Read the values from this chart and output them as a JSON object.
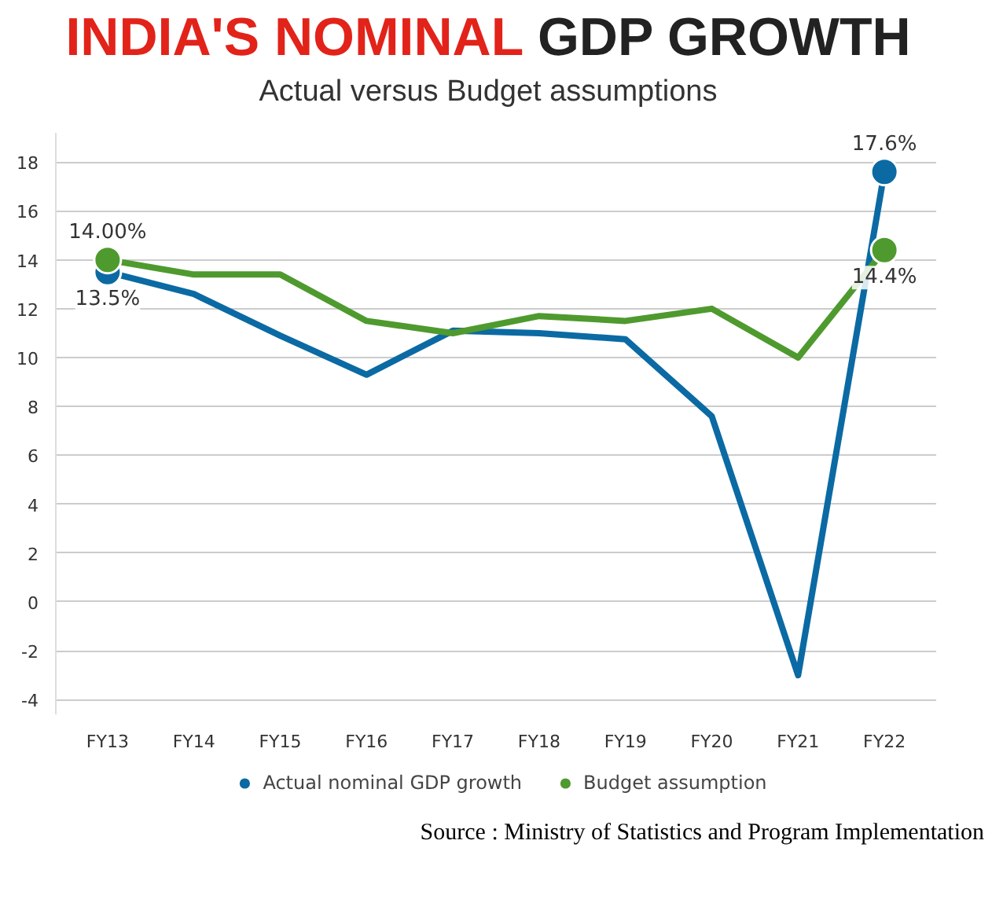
{
  "chart_data": {
    "type": "line",
    "title": "INDIA'S NOMINAL GDP GROWTH",
    "subtitle": "Actual versus Budget assumptions",
    "categories": [
      "FY13",
      "FY14",
      "FY15",
      "FY16",
      "FY17",
      "FY18",
      "FY19",
      "FY20",
      "FY21",
      "FY22"
    ],
    "series": [
      {
        "name": "Actual nominal GDP growth",
        "color": "#0b6aa3",
        "values": [
          13.5,
          12.6,
          10.9,
          9.3,
          11.1,
          11.0,
          10.75,
          7.6,
          -3.0,
          17.6
        ],
        "value_labels": [
          "13.5%",
          null,
          null,
          null,
          null,
          null,
          null,
          null,
          null,
          "17.6%"
        ]
      },
      {
        "name": "Budget assumption",
        "color": "#4f9a2e",
        "values": [
          14.0,
          13.4,
          13.4,
          11.5,
          11.0,
          11.7,
          11.5,
          12.0,
          10.0,
          14.4
        ],
        "value_labels": [
          "14.00%",
          null,
          null,
          null,
          null,
          null,
          null,
          null,
          null,
          "14.4%"
        ]
      }
    ],
    "ylim": [
      -4.6,
      19.2
    ],
    "yticks": [
      -4,
      -2,
      0,
      2,
      4,
      6,
      8,
      10,
      12,
      14,
      16,
      18
    ],
    "grid": "y",
    "legend": "bottom",
    "line_style": "solid",
    "annotations": [
      "Source : Ministry of Statistics and Program Implementation"
    ]
  }
}
